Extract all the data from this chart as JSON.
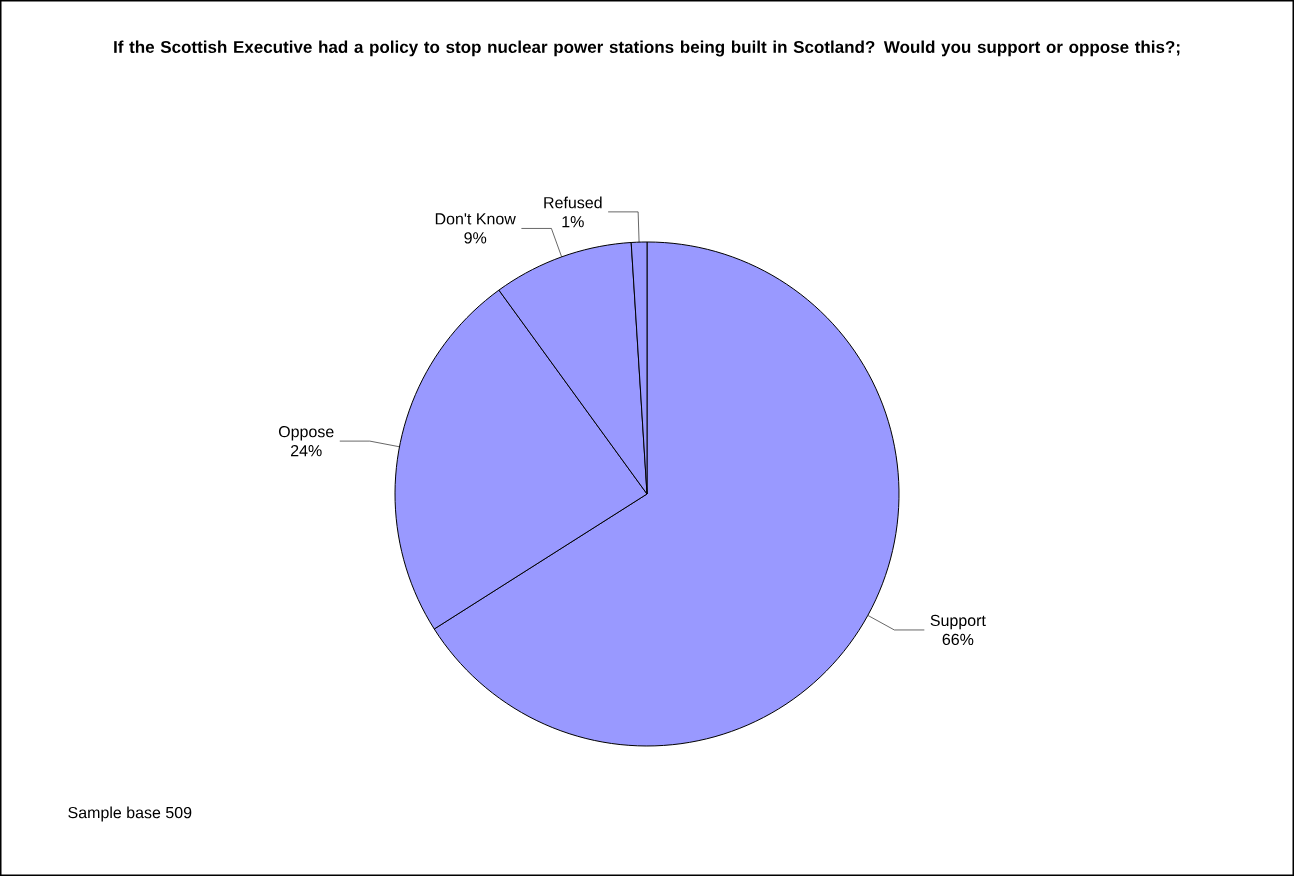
{
  "chart_data": {
    "type": "pie",
    "title": "If the Scottish Executive  had a policy to stop nuclear power stations being built in Scotland? Would you support or oppose this?;",
    "categories": [
      "Support",
      "Oppose",
      "Don't Know",
      "Refused"
    ],
    "values": [
      66,
      24,
      9,
      1
    ],
    "value_labels": [
      "66%",
      "24%",
      "9%",
      "1%"
    ],
    "colors": [
      "#9999ff",
      "#9999ff",
      "#9999ff",
      "#9999ff"
    ],
    "annotations": [
      "Sample base 509"
    ]
  }
}
